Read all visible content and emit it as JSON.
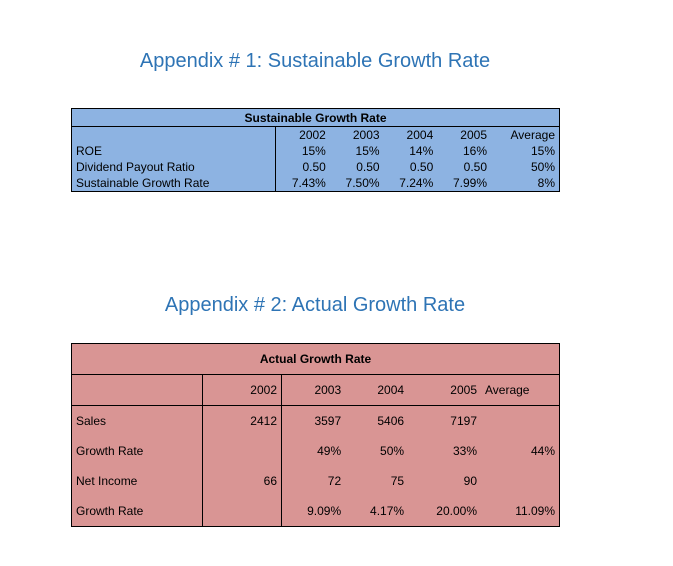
{
  "headings": {
    "appendix1": "Appendix # 1: Sustainable Growth Rate",
    "appendix2": "Appendix # 2: Actual Growth Rate"
  },
  "colors": {
    "heading": "#2e74b5",
    "table1_fill": "#8db3e2",
    "table2_fill": "#d99594"
  },
  "table1": {
    "title": "Sustainable Growth Rate",
    "columns": [
      "2002",
      "2003",
      "2004",
      "2005",
      "Average"
    ],
    "rows": [
      {
        "label": "ROE",
        "values": [
          "15%",
          "15%",
          "14%",
          "16%",
          "15%"
        ]
      },
      {
        "label": "Dividend Payout Ratio",
        "values": [
          "0.50",
          "0.50",
          "0.50",
          "0.50",
          "50%"
        ]
      },
      {
        "label": "Sustainable Growth Rate",
        "values": [
          "7.43%",
          "7.50%",
          "7.24%",
          "7.99%",
          "8%"
        ]
      }
    ]
  },
  "table2": {
    "title": "Actual Growth Rate",
    "columns": [
      "2002",
      "2003",
      "2004",
      "2005",
      "Average"
    ],
    "rows": [
      {
        "label": "Sales",
        "values": [
          "2412",
          "3597",
          "5406",
          "7197",
          ""
        ]
      },
      {
        "label": "Growth Rate",
        "values": [
          "",
          "49%",
          "50%",
          "33%",
          "44%"
        ]
      },
      {
        "label": "Net Income",
        "values": [
          "66",
          "72",
          "75",
          "90",
          ""
        ]
      },
      {
        "label": "Growth Rate",
        "values": [
          "",
          "9.09%",
          "4.17%",
          "20.00%",
          "11.09%"
        ]
      }
    ]
  }
}
